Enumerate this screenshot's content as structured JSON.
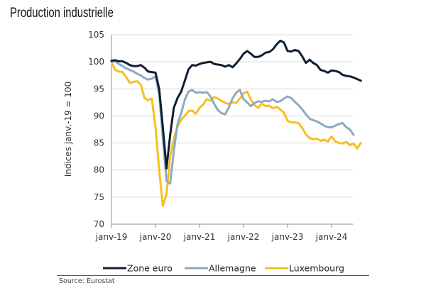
{
  "title": "Production industrielle",
  "source": "Source: Eurostat",
  "chart_data": {
    "type": "line",
    "title": "Production industrielle",
    "xlabel": "",
    "ylabel": "Indices janv.-19 = 100",
    "ylim": [
      70,
      105
    ],
    "yticks": [
      "70",
      "75",
      "80",
      "85",
      "90",
      "95",
      "100",
      "105"
    ],
    "xticks": [
      "janv-19",
      "janv-20",
      "janv-21",
      "janv-22",
      "janv-23",
      "janv-24"
    ],
    "x_start": "2019-01",
    "x_unit": "month",
    "grid": "horizontal",
    "legend_position": "bottom",
    "series": [
      {
        "name": "Zone euro",
        "color": "#0f1e33",
        "values": [
          100.2,
          100.3,
          100.1,
          100.1,
          99.8,
          99.4,
          99.2,
          99.2,
          99.4,
          98.9,
          98.2,
          98.1,
          98.0,
          95.0,
          88.0,
          80.3,
          86.5,
          91.5,
          93.3,
          94.5,
          96.5,
          98.6,
          99.4,
          99.3,
          99.6,
          99.8,
          99.9,
          100.0,
          99.6,
          99.5,
          99.4,
          99.1,
          99.4,
          99.0,
          99.7,
          100.5,
          101.5,
          102.0,
          101.5,
          100.9,
          100.9,
          101.2,
          101.7,
          101.8,
          102.3,
          103.2,
          103.9,
          103.6,
          102.0,
          101.9,
          102.2,
          102.0,
          101.0,
          99.8,
          100.4,
          99.8,
          99.4,
          98.5,
          98.3,
          98.0,
          98.4,
          98.3,
          98.1,
          97.6,
          97.4,
          97.3,
          97.1,
          96.8,
          96.5
        ]
      },
      {
        "name": "Allemagne",
        "color": "#8fa9c2",
        "values": [
          100.0,
          100.1,
          99.6,
          99.2,
          98.8,
          98.5,
          98.2,
          97.8,
          97.5,
          97.0,
          96.7,
          96.9,
          97.3,
          94.0,
          86.0,
          78.0,
          77.5,
          83.5,
          88.5,
          90.5,
          93.0,
          94.5,
          94.8,
          94.3,
          94.4,
          94.3,
          94.4,
          93.6,
          92.2,
          91.1,
          90.5,
          90.3,
          91.6,
          93.2,
          94.3,
          94.8,
          93.1,
          92.5,
          91.8,
          92.4,
          92.7,
          92.6,
          92.8,
          92.7,
          93.1,
          92.6,
          92.7,
          93.2,
          93.6,
          93.3,
          92.6,
          92.0,
          91.2,
          90.3,
          89.5,
          89.2,
          89.0,
          88.6,
          88.2,
          87.9,
          87.9,
          88.2,
          88.5,
          88.7,
          87.9,
          87.5,
          86.5
        ]
      },
      {
        "name": "Luxembourg",
        "color": "#f5c022",
        "values": [
          100.0,
          98.5,
          98.2,
          98.1,
          97.2,
          96.1,
          96.3,
          96.4,
          95.8,
          93.3,
          92.9,
          93.2,
          88.0,
          80.0,
          73.4,
          75.5,
          82.5,
          85.8,
          88.0,
          89.3,
          90.0,
          90.9,
          91.0,
          90.4,
          91.5,
          92.1,
          93.1,
          92.8,
          93.5,
          93.2,
          92.8,
          92.4,
          92.2,
          92.5,
          92.4,
          93.2,
          94.2,
          94.5,
          93.0,
          92.0,
          91.5,
          92.3,
          91.8,
          91.9,
          91.4,
          91.7,
          91.2,
          90.6,
          89.1,
          88.8,
          88.8,
          88.7,
          87.8,
          86.6,
          85.9,
          85.7,
          85.8,
          85.4,
          85.6,
          85.3,
          86.2,
          85.3,
          85.0,
          84.9,
          85.2,
          84.6,
          84.9,
          84.0,
          85.0
        ]
      }
    ]
  }
}
